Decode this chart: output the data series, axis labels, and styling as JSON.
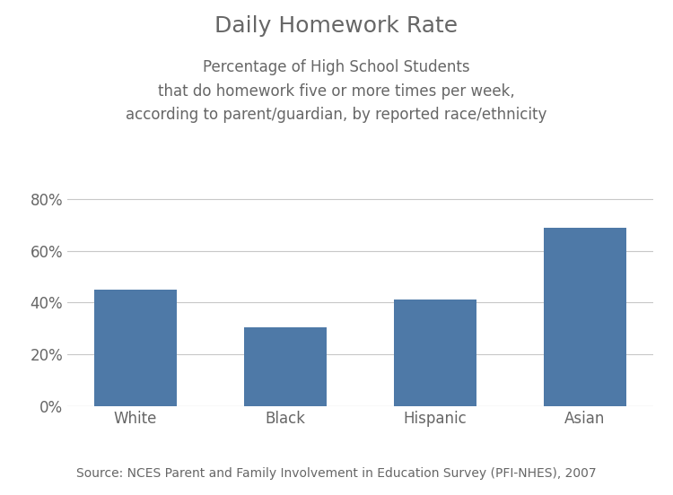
{
  "title": "Daily Homework Rate",
  "subtitle": "Percentage of High School Students\nthat do homework five or more times per week,\naccording to parent/guardian, by reported race/ethnicity",
  "categories": [
    "White",
    "Black",
    "Hispanic",
    "Asian"
  ],
  "values": [
    0.45,
    0.305,
    0.41,
    0.69
  ],
  "bar_color": "#4e79a7",
  "ylim": [
    0,
    0.88
  ],
  "yticks": [
    0.0,
    0.2,
    0.4,
    0.6,
    0.8
  ],
  "ytick_labels": [
    "0%",
    "20%",
    "40%",
    "60%",
    "80%"
  ],
  "source_text": "Source: NCES Parent and Family Involvement in Education Survey (PFI-NHES), 2007",
  "title_fontsize": 18,
  "subtitle_fontsize": 12,
  "tick_fontsize": 12,
  "source_fontsize": 10,
  "background_color": "#ffffff",
  "grid_color": "#c8c8c8",
  "text_color": "#666666"
}
